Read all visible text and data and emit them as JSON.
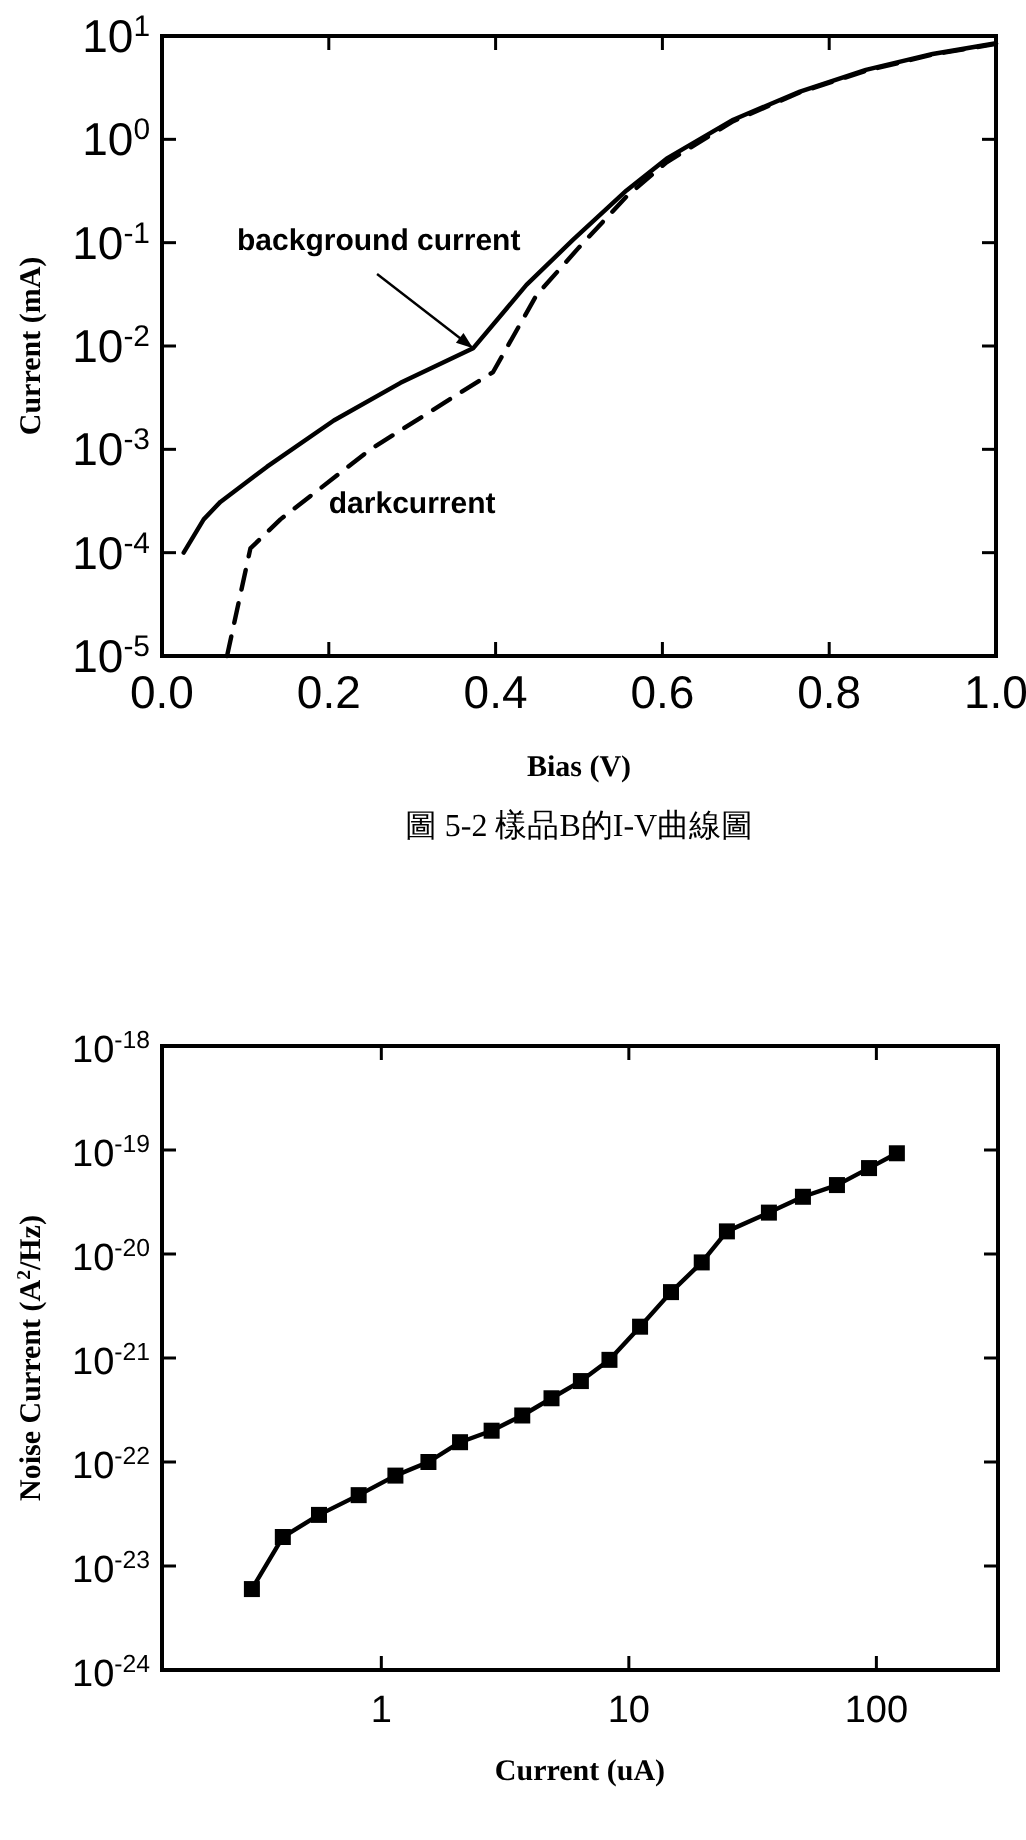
{
  "chart_data": [
    {
      "type": "line",
      "xlabel": "Bias (V)",
      "ylabel": "Current (mA)",
      "log": "y",
      "xlim": [
        0,
        1.0
      ],
      "ylim": [
        1e-05,
        10
      ],
      "xticks": [
        {
          "value": 0,
          "label": "0.0"
        },
        0.2,
        0.4,
        0.6,
        0.8,
        {
          "value": 1,
          "label": "1.0"
        }
      ],
      "yticks": [
        {
          "value": 1e-05,
          "label": "10$^{-5}$"
        },
        {
          "value": 0.0001,
          "label": "10$^{-4}$"
        },
        {
          "value": 0.001,
          "label": "10$^{-3}$"
        },
        {
          "value": 0.01,
          "label": "10$^{-2}$"
        },
        {
          "value": 0.1,
          "label": "10$^{-1}$"
        },
        {
          "value": 1,
          "label": "10$^{0}$"
        },
        {
          "value": 10,
          "label": "10$^{1}$"
        }
      ],
      "series": [
        {
          "name": "background current",
          "color": "#000000",
          "line_style": "solid",
          "x": [
            0.026,
            0.05,
            0.07,
            0.126,
            0.206,
            0.286,
            0.373,
            0.437,
            0.493,
            0.557,
            0.605,
            0.685,
            0.765,
            0.844,
            0.924,
            1.0
          ],
          "values": [
            0.0001,
            0.00021,
            0.00031,
            0.00068,
            0.0019,
            0.0044,
            0.0095,
            0.039,
            0.107,
            0.32,
            0.65,
            1.55,
            2.9,
            4.7,
            6.7,
            8.5
          ]
        },
        {
          "name": "darkcurrent",
          "color": "#000000",
          "line_style": "dashed",
          "x": [
            0.078,
            0.106,
            0.142,
            0.25,
            0.397,
            0.449,
            0.5,
            0.557,
            0.605,
            0.685,
            0.765,
            0.844,
            0.924,
            1.0
          ],
          "values": [
            1e-05,
            0.00011,
            0.00021,
            0.001,
            0.0056,
            0.031,
            0.09,
            0.28,
            0.6,
            1.5,
            2.85,
            4.6,
            6.6,
            8.4
          ]
        }
      ],
      "annotations": [
        "圖 5-2   樣品B的I-V曲線圖"
      ]
    },
    {
      "type": "line",
      "xlabel": "Current (uA)",
      "ylabel": "Noise Current (A$^{2}$/Hz)",
      "log": "xy",
      "xlim": [
        0.13,
        310
      ],
      "ylim": [
        1e-24,
        1e-18
      ],
      "marker": "square",
      "line_style": "solid",
      "xticks": [
        1,
        10,
        100
      ],
      "yticks": [
        {
          "value": 1e-24,
          "label": "10$^{-24}$"
        },
        {
          "value": 1e-23,
          "label": "10$^{-23}$"
        },
        {
          "value": 1e-22,
          "label": "10$^{-22}$"
        },
        {
          "value": 1e-21,
          "label": "10$^{-21}$"
        },
        {
          "value": 1e-20,
          "label": "10$^{-20}$"
        },
        {
          "value": 1e-19,
          "label": "10$^{-19}$"
        },
        {
          "value": 1e-18,
          "label": "10$^{-18}$"
        }
      ],
      "series": [
        {
          "color": "#000000",
          "x": [
            0.3,
            0.4,
            0.56,
            0.81,
            1.14,
            1.55,
            2.08,
            2.79,
            3.71,
            4.87,
            6.4,
            8.35,
            11.1,
            14.8,
            19.7,
            24.9,
            36.8,
            50.5,
            69.3,
            93.4,
            121
          ],
          "values": [
            6e-24,
            1.9e-23,
            3.1e-23,
            4.8e-23,
            7.4e-23,
            1e-22,
            1.55e-22,
            2e-22,
            2.8e-22,
            4.1e-22,
            6e-22,
            9.6e-22,
            2e-21,
            4.3e-21,
            8.3e-21,
            1.65e-20,
            2.5e-20,
            3.55e-20,
            4.6e-20,
            6.7e-20,
            9.3e-20
          ]
        }
      ]
    }
  ]
}
